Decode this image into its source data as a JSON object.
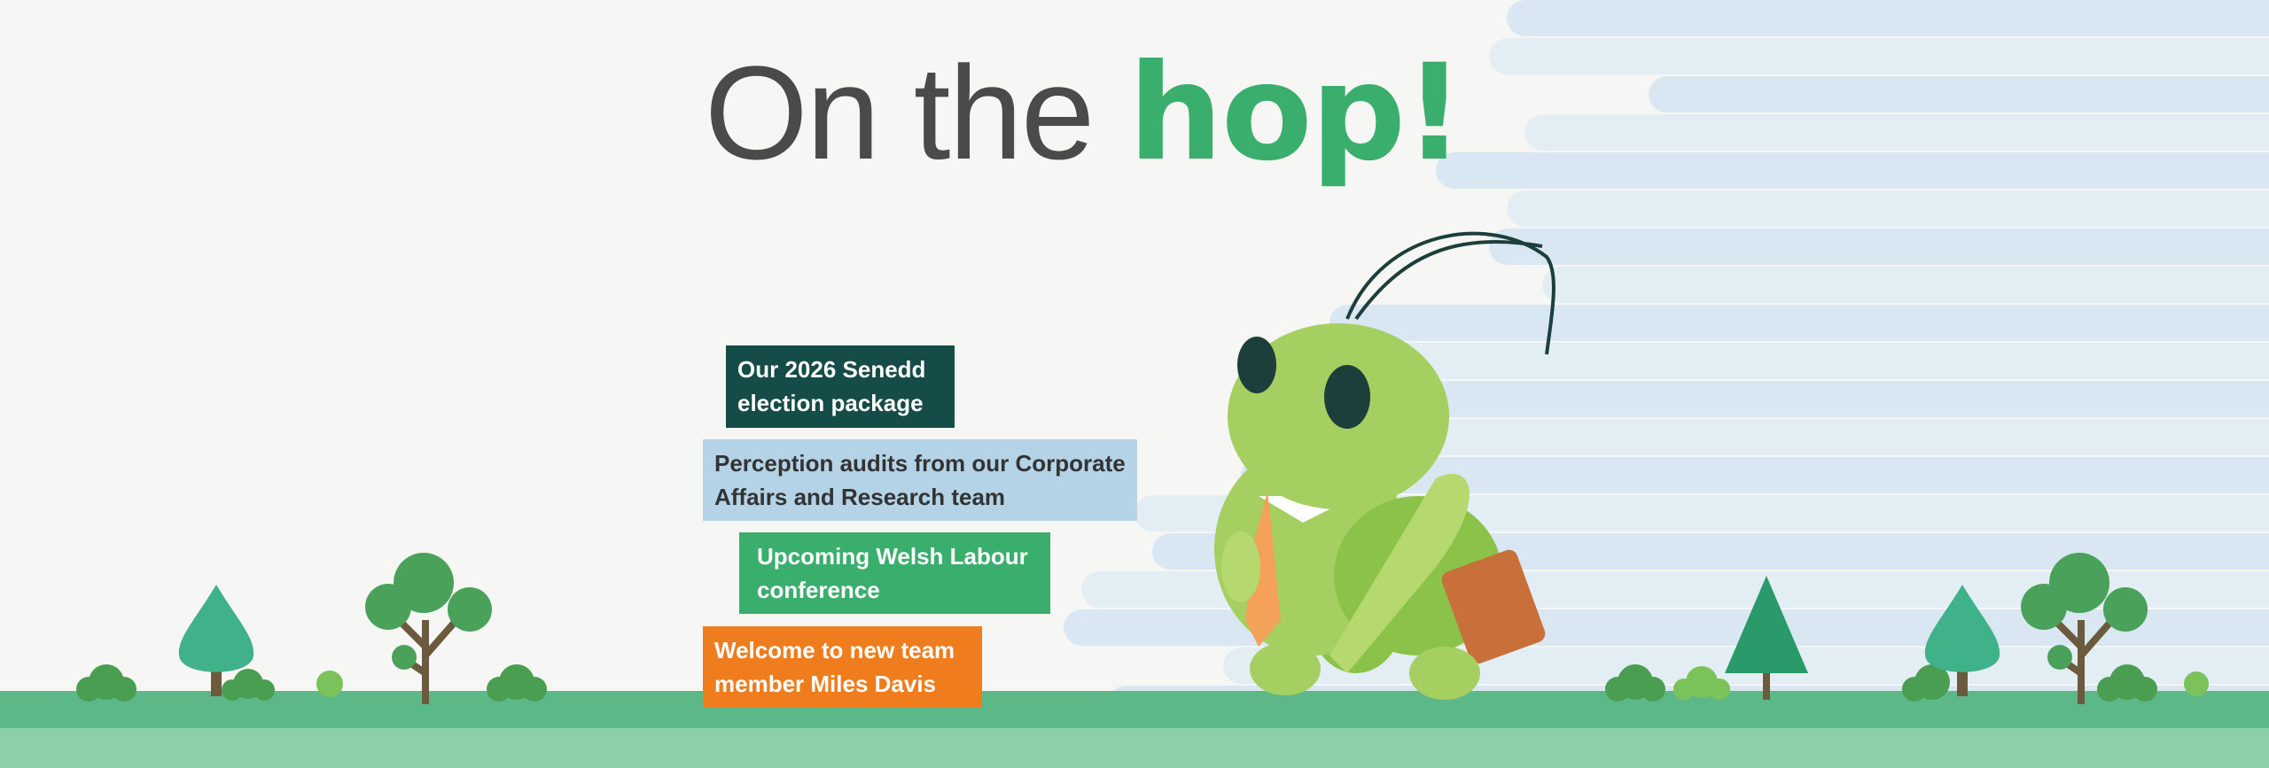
{
  "headline": {
    "prefix": "On the",
    "highlight": "hop!"
  },
  "colors": {
    "accent_green": "#3aae6c",
    "dark_green": "#164c47",
    "light_blue": "#b5d3e6",
    "orange": "#ef7d1e",
    "ground": "#5cb887",
    "ground_light": "#8dcfa9"
  },
  "news_items": [
    {
      "text": "Our 2026 Senedd election package",
      "lines": [
        "Our 2026 Senedd",
        "election package"
      ],
      "bg": "#164c47",
      "fg": "#ffffff"
    },
    {
      "text": "Perception audits from our Corporate Affairs and Research team",
      "lines": [
        "Perception audits from our Corporate",
        "Affairs and Research team"
      ],
      "bg": "#b5d3e6",
      "fg": "#333333"
    },
    {
      "text": "Upcoming Welsh Labour conference",
      "lines": [
        "Upcoming Welsh Labour",
        "conference"
      ],
      "bg": "#3aae6c",
      "fg": "#ffffff"
    },
    {
      "text": "Welcome to new team member Miles Davis",
      "lines": [
        "Welcome to new team",
        "member Miles Davis"
      ],
      "bg": "#ef7d1e",
      "fg": "#ffffff"
    }
  ],
  "illustration": {
    "character": "grasshopper-with-tie-and-briefcase"
  }
}
